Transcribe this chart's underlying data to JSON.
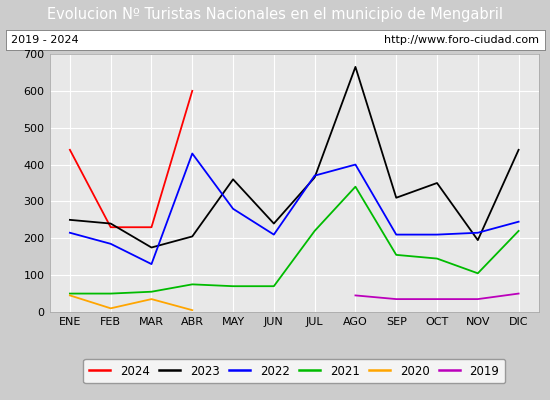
{
  "title": "Evolucion Nº Turistas Nacionales en el municipio de Mengabril",
  "subtitle_left": "2019 - 2024",
  "subtitle_right": "http://www.foro-ciudad.com",
  "months": [
    "ENE",
    "FEB",
    "MAR",
    "ABR",
    "MAY",
    "JUN",
    "JUL",
    "AGO",
    "SEP",
    "OCT",
    "NOV",
    "DIC"
  ],
  "series": {
    "2024": {
      "color": "#ff0000",
      "data": [
        440,
        230,
        230,
        600,
        null,
        null,
        null,
        null,
        null,
        null,
        null,
        null
      ]
    },
    "2023": {
      "color": "#000000",
      "data": [
        250,
        240,
        175,
        205,
        360,
        240,
        365,
        665,
        310,
        350,
        195,
        440
      ]
    },
    "2022": {
      "color": "#0000ff",
      "data": [
        215,
        185,
        130,
        430,
        280,
        210,
        370,
        400,
        210,
        210,
        215,
        245
      ]
    },
    "2021": {
      "color": "#00bb00",
      "data": [
        50,
        50,
        55,
        75,
        70,
        70,
        220,
        340,
        155,
        145,
        105,
        220
      ]
    },
    "2020": {
      "color": "#ffa500",
      "data": [
        45,
        10,
        35,
        5,
        null,
        null,
        null,
        null,
        null,
        null,
        null,
        null
      ]
    },
    "2019": {
      "color": "#bb00bb",
      "data": [
        null,
        null,
        null,
        null,
        null,
        null,
        null,
        45,
        35,
        35,
        35,
        50
      ]
    }
  },
  "ylim": [
    0,
    700
  ],
  "yticks": [
    0,
    100,
    200,
    300,
    400,
    500,
    600,
    700
  ],
  "title_bgcolor": "#4d9fdb",
  "title_color": "#ffffff",
  "title_fontsize": 10.5,
  "subtitle_fontsize": 8,
  "axis_fontsize": 8,
  "plot_bgcolor": "#e8e8e8",
  "grid_color": "#ffffff",
  "legend_fontsize": 8.5,
  "outer_bg": "#dddddd"
}
